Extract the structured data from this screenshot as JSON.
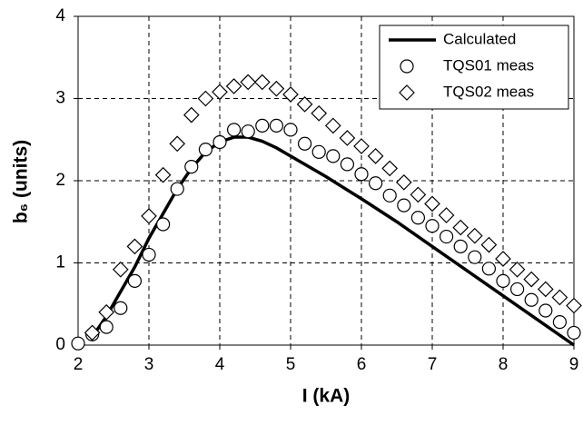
{
  "chart_data": {
    "type": "line",
    "xlabel": "I (kA)",
    "ylabel": "b₆ (units)",
    "xlim": [
      2,
      9
    ],
    "ylim": [
      0,
      4
    ],
    "xticks": [
      2,
      3,
      4,
      5,
      6,
      7,
      8,
      9
    ],
    "yticks": [
      0,
      1,
      2,
      3,
      4
    ],
    "grid": true,
    "legend": "upper right",
    "series": [
      {
        "name": "Calculated",
        "color": "#000000",
        "marker": "none",
        "x": [
          2.2,
          2.4,
          2.6,
          2.8,
          3.0,
          3.2,
          3.4,
          3.6,
          3.8,
          4.0,
          4.2,
          4.4,
          4.6,
          4.8,
          5.0,
          5.5,
          6.0,
          6.5,
          7.0,
          7.5,
          8.0,
          8.5,
          9.0
        ],
        "values": [
          0.1,
          0.35,
          0.65,
          0.95,
          1.3,
          1.6,
          1.9,
          2.15,
          2.35,
          2.47,
          2.53,
          2.53,
          2.48,
          2.4,
          2.3,
          2.05,
          1.78,
          1.5,
          1.2,
          0.9,
          0.6,
          0.3,
          0
        ]
      },
      {
        "name": "TQS01 meas",
        "color": "#000000",
        "marker": "circle",
        "x": [
          2.0,
          2.2,
          2.4,
          2.6,
          2.8,
          3.0,
          3.2,
          3.4,
          3.6,
          3.8,
          4.0,
          4.2,
          4.4,
          4.6,
          4.8,
          5.0,
          5.2,
          5.4,
          5.6,
          5.8,
          6.0,
          6.2,
          6.4,
          6.6,
          6.8,
          7.0,
          7.2,
          7.4,
          7.6,
          7.8,
          8.0,
          8.2,
          8.4,
          8.6,
          8.8,
          9.0
        ],
        "values": [
          0.02,
          0.13,
          0.22,
          0.45,
          0.78,
          1.1,
          1.47,
          1.9,
          2.17,
          2.38,
          2.47,
          2.62,
          2.6,
          2.67,
          2.67,
          2.62,
          2.45,
          2.35,
          2.3,
          2.2,
          2.08,
          1.97,
          1.82,
          1.7,
          1.55,
          1.45,
          1.32,
          1.2,
          1.07,
          0.93,
          0.78,
          0.68,
          0.55,
          0.42,
          0.28,
          0.15
        ]
      },
      {
        "name": "TQS02 meas",
        "color": "#000000",
        "marker": "diamond",
        "x": [
          2.2,
          2.4,
          2.6,
          2.8,
          3.0,
          3.2,
          3.4,
          3.6,
          3.8,
          4.0,
          4.2,
          4.4,
          4.6,
          4.8,
          5.0,
          5.2,
          5.4,
          5.6,
          5.8,
          6.0,
          6.2,
          6.4,
          6.6,
          6.8,
          7.0,
          7.2,
          7.4,
          7.6,
          7.8,
          8.0,
          8.2,
          8.4,
          8.6,
          8.8,
          9.0
        ],
        "values": [
          0.15,
          0.4,
          0.92,
          1.2,
          1.57,
          2.07,
          2.45,
          2.8,
          3.0,
          3.08,
          3.15,
          3.2,
          3.2,
          3.12,
          3.05,
          2.93,
          2.82,
          2.67,
          2.52,
          2.42,
          2.3,
          2.15,
          1.98,
          1.83,
          1.72,
          1.58,
          1.43,
          1.33,
          1.22,
          1.05,
          0.92,
          0.8,
          0.68,
          0.58,
          0.48
        ]
      }
    ]
  }
}
